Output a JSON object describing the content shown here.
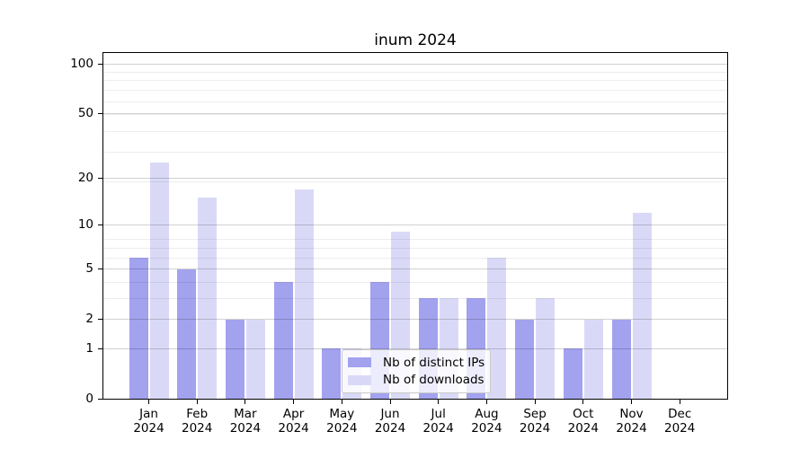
{
  "chart_data": {
    "type": "bar",
    "title": "inum 2024",
    "categories": [
      "Jan 2024",
      "Feb 2024",
      "Mar 2024",
      "Apr 2024",
      "May 2024",
      "Jun 2024",
      "Jul 2024",
      "Aug 2024",
      "Sep 2024",
      "Oct 2024",
      "Nov 2024",
      "Dec 2024"
    ],
    "series": [
      {
        "name": "Nb of distinct IPs",
        "color": "#a2a2ef",
        "values": [
          6,
          5,
          2,
          4,
          1,
          4,
          3,
          3,
          2,
          1,
          2,
          0
        ]
      },
      {
        "name": "Nb of downloads",
        "color": "#d9d9f7",
        "values": [
          25,
          15,
          2,
          17,
          1,
          9,
          3,
          6,
          3,
          2,
          12,
          0
        ]
      }
    ],
    "xlabel": "",
    "ylabel": "",
    "y_axis": {
      "scale": "log1p",
      "tick_labels": [
        0,
        1,
        2,
        5,
        10,
        20,
        50,
        100
      ],
      "minor_gridlines": [
        3,
        4,
        6,
        7,
        8,
        19,
        29,
        39,
        49,
        59,
        69,
        79,
        89
      ],
      "max": 120
    },
    "grid": "horizontal major+minor, drawn over bars",
    "legend": {
      "position": "lower-center",
      "entries": [
        "Nb of distinct IPs",
        "Nb of downloads"
      ]
    },
    "colors": {
      "background": "#ffffff",
      "spine": "#000000",
      "grid_major": "rgba(0,0,0,0.18)",
      "grid_minor": "rgba(0,0,0,0.07)",
      "legend_border": "#c9c9c9",
      "legend_background": "rgba(255,255,255,0.8)"
    }
  }
}
